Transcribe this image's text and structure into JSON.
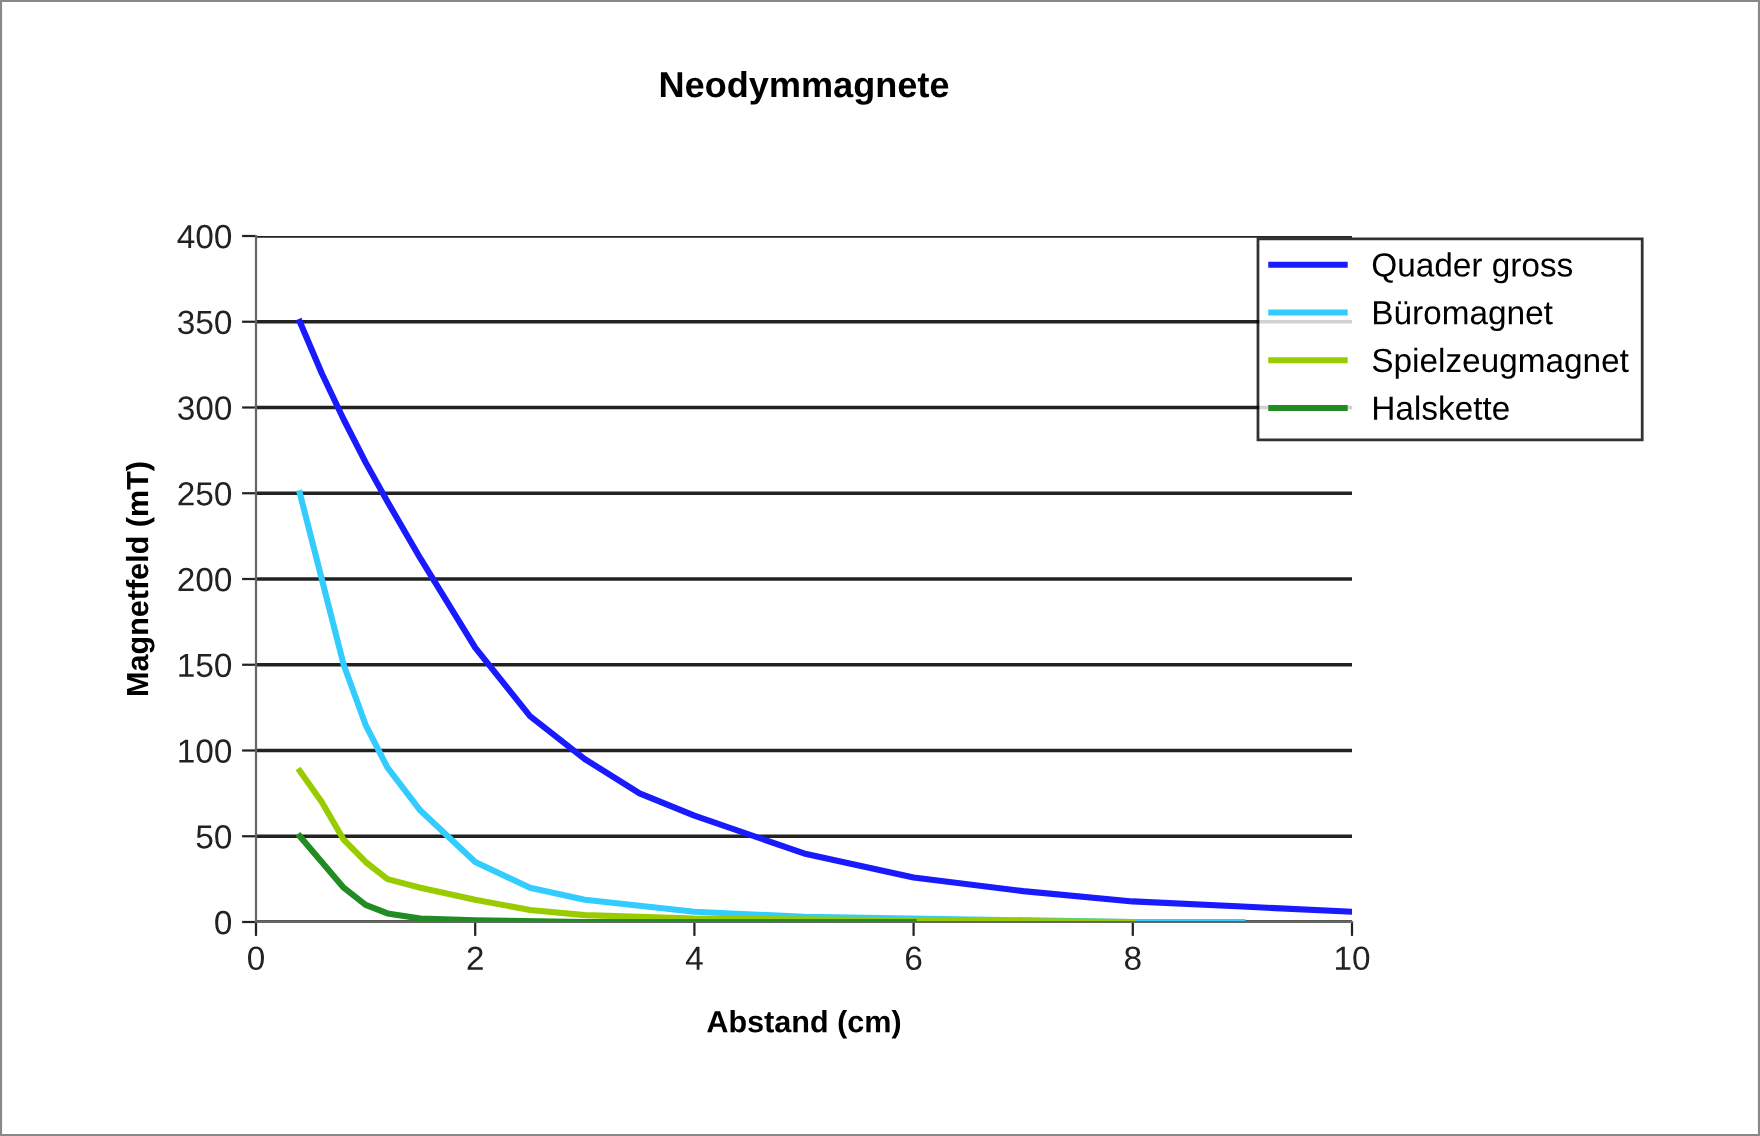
{
  "chart_data": {
    "type": "line",
    "title": "Neodymmagnete",
    "xlabel": "Abstand (cm)",
    "ylabel": "Magnetfeld (mT)",
    "xlim": [
      0,
      10
    ],
    "xticks": [
      0,
      2,
      4,
      6,
      8,
      10
    ],
    "ylim": [
      0,
      400
    ],
    "yticks": [
      0,
      50,
      100,
      150,
      200,
      250,
      300,
      350,
      400
    ],
    "grid": "y",
    "legend": "top right",
    "marker": "none",
    "line_style": "solid",
    "series": [
      {
        "name": "Quader gross",
        "color": "#1a1aff",
        "x": [
          0.4,
          0.6,
          0.8,
          1,
          1.2,
          1.5,
          2,
          2.5,
          3,
          3.5,
          4,
          5,
          6,
          7,
          8,
          9,
          10
        ],
        "values": [
          350,
          320,
          293,
          268,
          245,
          212,
          160,
          120,
          95,
          75,
          62,
          40,
          26,
          18,
          12,
          9,
          6
        ]
      },
      {
        "name": "Büromagnet",
        "color": "#33ccff",
        "x": [
          0.4,
          0.6,
          0.8,
          1,
          1.2,
          1.5,
          2,
          2.5,
          3,
          4,
          5,
          8,
          9
        ],
        "values": [
          250,
          200,
          150,
          115,
          90,
          65,
          35,
          20,
          13,
          6,
          3,
          0,
          0
        ]
      },
      {
        "name": "Spielzeugmagnet",
        "color": "#99cc00",
        "x": [
          0.4,
          0.6,
          0.8,
          1,
          1.2,
          1.5,
          2,
          2.5,
          3,
          4,
          6,
          8
        ],
        "values": [
          88,
          70,
          48,
          35,
          25,
          20,
          13,
          7,
          4,
          2,
          1,
          0
        ]
      },
      {
        "name": "Halskette",
        "color": "#218c21",
        "x": [
          0.4,
          0.6,
          0.8,
          1,
          1.2,
          1.5,
          2,
          3,
          6
        ],
        "values": [
          50,
          35,
          20,
          10,
          5,
          2,
          1,
          0,
          0
        ]
      }
    ]
  }
}
